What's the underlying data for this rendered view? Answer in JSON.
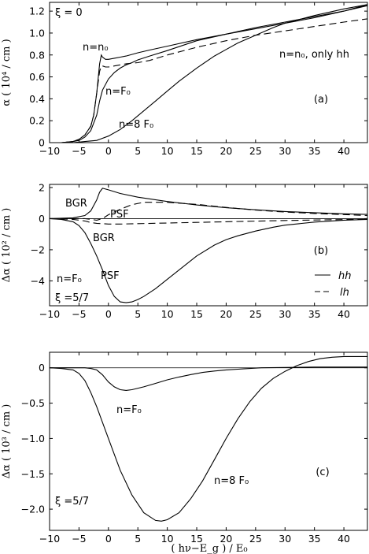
{
  "chart_data": [
    {
      "id": "a",
      "type": "line",
      "panel_label": "(a)",
      "ylabel": "α ( 10⁴ / cm )",
      "xlim": [
        -10,
        44
      ],
      "ylim": [
        0,
        1.28
      ],
      "xticks": [
        -10,
        -5,
        0,
        5,
        10,
        15,
        20,
        25,
        30,
        35,
        40
      ],
      "yticks": [
        0,
        0.2,
        0.4,
        0.6,
        0.8,
        1.0,
        1.2
      ],
      "ytick_labels": [
        "0",
        "0.2",
        "0.4",
        "0.6",
        "0.8",
        "1.0",
        "1.2"
      ],
      "annotations": [
        {
          "text": "ξ = 0",
          "x": -9.5,
          "y": 1.2
        },
        {
          "text": "n=n₀",
          "x": -6.2,
          "y": 0.84
        },
        {
          "text": "n=n₀, only hh",
          "x": 25.5,
          "y": 0.95
        },
        {
          "text": "n=F₀",
          "x": -0.2,
          "y": 0.45
        },
        {
          "text": "n=8 F₀",
          "x": 1.8,
          "y": 0.13
        }
      ],
      "series": [
        {
          "style": "solid",
          "x": [
            -10,
            -8,
            -6,
            -5,
            -4,
            -3,
            -2.5,
            -2,
            -1.5,
            -1.2,
            -1,
            -0.5,
            0,
            1,
            2,
            3,
            5,
            7,
            10,
            15,
            20,
            25,
            30,
            35,
            40,
            44
          ],
          "y": [
            0,
            0,
            0.01,
            0.03,
            0.07,
            0.15,
            0.25,
            0.45,
            0.72,
            0.8,
            0.78,
            0.76,
            0.76,
            0.77,
            0.78,
            0.79,
            0.82,
            0.845,
            0.88,
            0.94,
            0.99,
            1.04,
            1.09,
            1.14,
            1.2,
            1.26
          ]
        },
        {
          "style": "solid",
          "x": [
            -10,
            -8,
            -6,
            -5,
            -4,
            -3,
            -2,
            -1.5,
            -1,
            0,
            1,
            2,
            3,
            4,
            5,
            7,
            10,
            15,
            20,
            25,
            30,
            35,
            40,
            44
          ],
          "y": [
            0,
            0,
            0.01,
            0.02,
            0.05,
            0.11,
            0.25,
            0.38,
            0.48,
            0.58,
            0.64,
            0.68,
            0.71,
            0.73,
            0.755,
            0.79,
            0.84,
            0.93,
            0.99,
            1.05,
            1.1,
            1.15,
            1.2,
            1.25
          ]
        },
        {
          "style": "solid",
          "x": [
            -10,
            -6,
            -4,
            -2,
            0,
            2,
            4,
            6,
            8,
            10,
            12,
            15,
            18,
            20,
            22,
            25,
            28,
            30,
            35,
            40,
            44
          ],
          "y": [
            0,
            0,
            0.01,
            0.02,
            0.06,
            0.12,
            0.2,
            0.29,
            0.38,
            0.47,
            0.56,
            0.68,
            0.79,
            0.85,
            0.91,
            0.98,
            1.05,
            1.09,
            1.16,
            1.22,
            1.26
          ]
        },
        {
          "style": "dashed",
          "x": [
            -10,
            -8,
            -6,
            -5,
            -4,
            -3,
            -2.5,
            -2,
            -1.5,
            -1.2,
            -1,
            -0.5,
            0,
            1,
            2,
            3,
            5,
            7,
            10,
            15,
            20,
            25,
            30,
            35,
            40,
            44
          ],
          "y": [
            0,
            0,
            0.01,
            0.03,
            0.07,
            0.15,
            0.25,
            0.45,
            0.65,
            0.7,
            0.7,
            0.69,
            0.69,
            0.7,
            0.71,
            0.72,
            0.73,
            0.75,
            0.8,
            0.87,
            0.93,
            0.98,
            1.02,
            1.06,
            1.1,
            1.13
          ]
        }
      ]
    },
    {
      "id": "b",
      "type": "line",
      "panel_label": "(b)",
      "ylabel": "Δα ( 10² / cm )",
      "xlim": [
        -10,
        44
      ],
      "ylim": [
        -5.6,
        2.2
      ],
      "xticks": [
        -10,
        -5,
        0,
        5,
        10,
        15,
        20,
        25,
        30,
        35,
        40
      ],
      "yticks": [
        -4,
        -2,
        0,
        2
      ],
      "ytick_labels": [
        "−4",
        "−2",
        "0",
        "2"
      ],
      "annotations": [
        {
          "text": "BGR",
          "x": -8.2,
          "y": 1.2
        },
        {
          "text": "PSF",
          "x": 1.7,
          "y": 0.55
        },
        {
          "text": "BGR",
          "x": -5.5,
          "y": -0.65
        },
        {
          "text": "PSF",
          "x": -0.4,
          "y": -2.9
        },
        {
          "text": "n=F₀",
          "x": -9.2,
          "y": -3.8
        },
        {
          "text": "ξ =5/7",
          "x": -9.5,
          "y": -5.0
        }
      ],
      "legend": {
        "position": "lower-right",
        "entries": [
          {
            "label": "hh",
            "style": "solid"
          },
          {
            "label": "lh",
            "style": "dashed"
          }
        ]
      },
      "series": [
        {
          "name": "hh",
          "style": "solid",
          "role": "BGR",
          "x": [
            -10,
            -6,
            -4,
            -3,
            -2,
            -1.5,
            -1,
            0,
            2,
            5,
            10,
            15,
            20,
            25,
            30,
            35,
            40,
            44
          ],
          "y": [
            0,
            0.05,
            0.2,
            0.5,
            1.2,
            1.7,
            1.95,
            1.85,
            1.62,
            1.38,
            1.1,
            0.88,
            0.7,
            0.57,
            0.46,
            0.38,
            0.31,
            0.27
          ]
        },
        {
          "name": "lh",
          "style": "dashed",
          "role": "PSF",
          "x": [
            -10,
            -6,
            -4,
            -3,
            -2,
            -1,
            0,
            2,
            4,
            6,
            10,
            15,
            20,
            25,
            30,
            35,
            40,
            44
          ],
          "y": [
            0,
            0,
            0,
            -0.05,
            -0.1,
            0.0,
            0.25,
            0.6,
            0.9,
            1.05,
            1.05,
            0.92,
            0.72,
            0.55,
            0.42,
            0.33,
            0.26,
            0.2
          ]
        },
        {
          "name": "lh",
          "style": "dashed",
          "role": "BGR",
          "x": [
            -10,
            -6,
            -4,
            -3,
            -2,
            0,
            2,
            5,
            10,
            15,
            20,
            25,
            30,
            35,
            40,
            44
          ],
          "y": [
            0,
            -0.05,
            -0.15,
            -0.25,
            -0.3,
            -0.35,
            -0.35,
            -0.32,
            -0.28,
            -0.24,
            -0.2,
            -0.16,
            -0.12,
            -0.09,
            -0.06,
            -0.05
          ]
        },
        {
          "name": "hh",
          "style": "solid",
          "role": "PSF",
          "x": [
            -10,
            -8,
            -6,
            -5,
            -4,
            -3,
            -2,
            -1,
            0,
            1,
            2,
            3,
            4,
            5,
            6,
            8,
            10,
            12,
            15,
            18,
            20,
            22,
            25,
            28,
            30,
            35,
            40,
            44
          ],
          "y": [
            0,
            -0.05,
            -0.2,
            -0.45,
            -0.9,
            -1.6,
            -2.4,
            -3.3,
            -4.3,
            -5.0,
            -5.35,
            -5.4,
            -5.35,
            -5.2,
            -5.0,
            -4.5,
            -3.9,
            -3.3,
            -2.4,
            -1.7,
            -1.35,
            -1.1,
            -0.8,
            -0.55,
            -0.42,
            -0.22,
            -0.1,
            -0.05
          ]
        }
      ]
    },
    {
      "id": "c",
      "type": "line",
      "panel_label": "(c)",
      "ylabel": "Δα ( 10³ / cm )",
      "xlabel": "( hν−E_g ) / E₀",
      "xlim": [
        -10,
        44
      ],
      "ylim": [
        -2.3,
        0.22
      ],
      "xticks": [
        -10,
        -5,
        0,
        5,
        10,
        15,
        20,
        25,
        30,
        35,
        40
      ],
      "yticks": [
        0,
        -0.5,
        -1.0,
        -1.5,
        -2.0
      ],
      "ytick_labels": [
        "0",
        "−0.5",
        "−1.0",
        "−1.5",
        "−2.0"
      ],
      "annotations": [
        {
          "text": "n=F₀",
          "x": 3.8,
          "y": -0.54
        },
        {
          "text": "(c)",
          "x": 39.5,
          "y": -1.1
        },
        {
          "text": "n=8 F₀",
          "x": 17.5,
          "y": -1.25
        },
        {
          "text": "ξ =5/7",
          "x": -9.5,
          "y": -2.05
        }
      ],
      "series": [
        {
          "style": "solid",
          "x": [
            -10,
            -4,
            -3,
            -2,
            -1,
            0,
            1,
            2,
            3,
            4,
            6,
            8,
            10,
            12,
            14,
            16,
            18,
            20,
            22,
            24,
            26,
            30,
            35,
            40,
            44
          ],
          "y": [
            0,
            0,
            -0.01,
            -0.03,
            -0.1,
            -0.2,
            -0.27,
            -0.31,
            -0.32,
            -0.31,
            -0.27,
            -0.22,
            -0.17,
            -0.13,
            -0.095,
            -0.065,
            -0.045,
            -0.03,
            -0.02,
            -0.01,
            0,
            0.005,
            0.01,
            0.01,
            0.01
          ]
        },
        {
          "style": "solid",
          "x": [
            -10,
            -8,
            -6,
            -5,
            -4,
            -3,
            -2,
            0,
            2,
            4,
            6,
            8,
            9,
            10,
            12,
            14,
            16,
            18,
            20,
            22,
            24,
            26,
            28,
            30,
            32,
            34,
            36,
            38,
            40,
            44
          ],
          "y": [
            0,
            -0.01,
            -0.03,
            -0.08,
            -0.18,
            -0.35,
            -0.55,
            -1.0,
            -1.45,
            -1.8,
            -2.05,
            -2.16,
            -2.17,
            -2.15,
            -2.05,
            -1.85,
            -1.6,
            -1.3,
            -1.0,
            -0.72,
            -0.48,
            -0.29,
            -0.15,
            -0.05,
            0.03,
            0.09,
            0.13,
            0.15,
            0.16,
            0.16
          ]
        }
      ]
    }
  ]
}
